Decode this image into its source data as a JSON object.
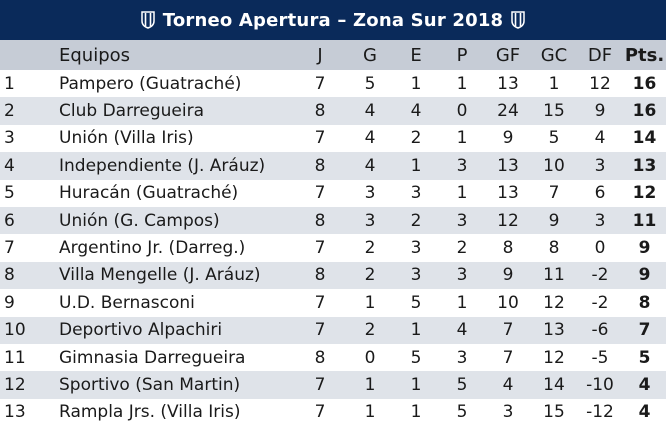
{
  "header": {
    "title": "Torneo Apertura – Zona Sur 2018"
  },
  "columns": {
    "pos": "",
    "team": "Equipos",
    "j": "J",
    "g": "G",
    "e": "E",
    "p": "P",
    "gf": "GF",
    "gc": "GC",
    "df": "DF",
    "pts": "Pts."
  },
  "rows": [
    {
      "pos": "1",
      "team": "Pampero (Guatraché)",
      "j": "7",
      "g": "5",
      "e": "1",
      "p": "1",
      "gf": "13",
      "gc": "1",
      "df": "12",
      "pts": "16"
    },
    {
      "pos": "2",
      "team": "Club Darregueira",
      "j": "8",
      "g": "4",
      "e": "4",
      "p": "0",
      "gf": "24",
      "gc": "15",
      "df": "9",
      "pts": "16"
    },
    {
      "pos": "3",
      "team": "Unión (Villa Iris)",
      "j": "7",
      "g": "4",
      "e": "2",
      "p": "1",
      "gf": "9",
      "gc": "5",
      "df": "4",
      "pts": "14"
    },
    {
      "pos": "4",
      "team": "Independiente (J. Aráuz)",
      "j": "8",
      "g": "4",
      "e": "1",
      "p": "3",
      "gf": "13",
      "gc": "10",
      "df": "3",
      "pts": "13"
    },
    {
      "pos": "5",
      "team": "Huracán (Guatraché)",
      "j": "7",
      "g": "3",
      "e": "3",
      "p": "1",
      "gf": "13",
      "gc": "7",
      "df": "6",
      "pts": "12"
    },
    {
      "pos": "6",
      "team": "Unión (G. Campos)",
      "j": "8",
      "g": "3",
      "e": "2",
      "p": "3",
      "gf": "12",
      "gc": "9",
      "df": "3",
      "pts": "11"
    },
    {
      "pos": "7",
      "team": "Argentino Jr. (Darreg.)",
      "j": "7",
      "g": "2",
      "e": "3",
      "p": "2",
      "gf": "8",
      "gc": "8",
      "df": "0",
      "pts": "9"
    },
    {
      "pos": "8",
      "team": "Villa Mengelle (J. Aráuz)",
      "j": "8",
      "g": "2",
      "e": "3",
      "p": "3",
      "gf": "9",
      "gc": "11",
      "df": "-2",
      "pts": "9"
    },
    {
      "pos": "9",
      "team": "U.D. Bernasconi",
      "j": "7",
      "g": "1",
      "e": "5",
      "p": "1",
      "gf": "10",
      "gc": "12",
      "df": "-2",
      "pts": "8"
    },
    {
      "pos": "10",
      "team": "Deportivo Alpachiri",
      "j": "7",
      "g": "2",
      "e": "1",
      "p": "4",
      "gf": "7",
      "gc": "13",
      "df": "-6",
      "pts": "7"
    },
    {
      "pos": "11",
      "team": "Gimnasia Darregueira",
      "j": "8",
      "g": "0",
      "e": "5",
      "p": "3",
      "gf": "7",
      "gc": "12",
      "df": "-5",
      "pts": "5"
    },
    {
      "pos": "12",
      "team": "Sportivo (San Martin)",
      "j": "7",
      "g": "1",
      "e": "1",
      "p": "5",
      "gf": "4",
      "gc": "14",
      "df": "-10",
      "pts": "4"
    },
    {
      "pos": "13",
      "team": "Rampla Jrs. (Villa Iris)",
      "j": "7",
      "g": "1",
      "e": "1",
      "p": "5",
      "gf": "3",
      "gc": "15",
      "df": "-12",
      "pts": "4"
    }
  ]
}
